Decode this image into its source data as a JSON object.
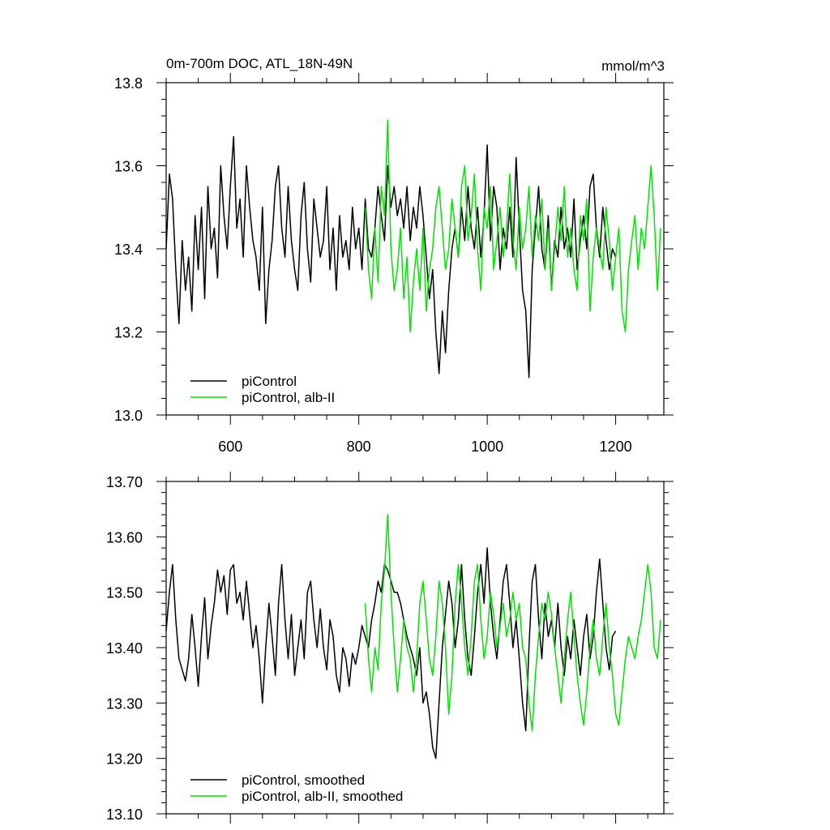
{
  "chart_data": [
    {
      "type": "line",
      "title": "0m-700m DOC, ATL_18N-49N",
      "units": "mmol/m^3",
      "xlim": [
        500,
        1275
      ],
      "ylim": [
        13.0,
        13.8
      ],
      "xticks": [
        600,
        800,
        1000,
        1200
      ],
      "xtick_labels": [
        "600",
        "800",
        "1000",
        "1200"
      ],
      "yticks": [
        13.0,
        13.2,
        13.4,
        13.6,
        13.8
      ],
      "ytick_labels": [
        "13.0",
        "13.2",
        "13.4",
        "13.6",
        "13.8"
      ],
      "legend_position": "bottom-left",
      "series": [
        {
          "name": "piControl",
          "color": "#000000",
          "x": [
            500,
            505,
            510,
            515,
            520,
            525,
            530,
            535,
            540,
            545,
            550,
            555,
            560,
            565,
            570,
            575,
            580,
            585,
            590,
            595,
            600,
            605,
            610,
            615,
            620,
            625,
            630,
            635,
            640,
            645,
            650,
            655,
            660,
            665,
            670,
            675,
            680,
            685,
            690,
            695,
            700,
            705,
            710,
            715,
            720,
            725,
            730,
            735,
            740,
            745,
            750,
            755,
            760,
            765,
            770,
            775,
            780,
            785,
            790,
            795,
            800,
            805,
            810,
            815,
            820,
            825,
            830,
            835,
            840,
            845,
            850,
            855,
            860,
            865,
            870,
            875,
            880,
            885,
            890,
            895,
            900,
            905,
            910,
            915,
            920,
            925,
            930,
            935,
            940,
            945,
            950,
            955,
            960,
            965,
            970,
            975,
            980,
            985,
            990,
            995,
            1000,
            1005,
            1010,
            1015,
            1020,
            1025,
            1030,
            1035,
            1040,
            1045,
            1050,
            1055,
            1060,
            1065,
            1070,
            1075,
            1080,
            1085,
            1090,
            1095,
            1100,
            1105,
            1110,
            1115,
            1120,
            1125,
            1130,
            1135,
            1140,
            1145,
            1150,
            1155,
            1160,
            1165,
            1170,
            1175,
            1180,
            1185,
            1190,
            1195,
            1200
          ],
          "y": [
            13.4,
            13.58,
            13.52,
            13.35,
            13.22,
            13.42,
            13.3,
            13.38,
            13.25,
            13.48,
            13.35,
            13.5,
            13.28,
            13.55,
            13.4,
            13.45,
            13.33,
            13.6,
            13.48,
            13.4,
            13.55,
            13.67,
            13.45,
            13.52,
            13.38,
            13.6,
            13.5,
            13.42,
            13.38,
            13.3,
            13.5,
            13.22,
            13.35,
            13.42,
            13.55,
            13.6,
            13.45,
            13.38,
            13.55,
            13.42,
            13.35,
            13.3,
            13.48,
            13.56,
            13.4,
            13.32,
            13.52,
            13.45,
            13.38,
            13.42,
            13.55,
            13.35,
            13.45,
            13.3,
            13.48,
            13.38,
            13.42,
            13.35,
            13.5,
            13.4,
            13.45,
            13.35,
            13.52,
            13.4,
            13.38,
            13.45,
            13.55,
            13.48,
            13.42,
            13.6,
            13.5,
            13.55,
            13.48,
            13.52,
            13.45,
            13.55,
            13.42,
            13.5,
            13.45,
            13.55,
            13.48,
            13.38,
            13.28,
            13.35,
            13.2,
            13.1,
            13.25,
            13.15,
            13.3,
            13.4,
            13.45,
            13.38,
            13.5,
            13.42,
            13.55,
            13.45,
            13.4,
            13.5,
            13.38,
            13.48,
            13.65,
            13.42,
            13.55,
            13.5,
            13.35,
            13.45,
            13.4,
            13.5,
            13.38,
            13.62,
            13.45,
            13.3,
            13.25,
            13.09,
            13.35,
            13.45,
            13.55,
            13.4,
            13.35,
            13.48,
            13.3,
            13.42,
            13.38,
            13.5,
            13.4,
            13.45,
            13.38,
            13.52,
            13.35,
            13.42,
            13.48,
            13.4,
            13.55,
            13.58,
            13.45,
            13.38,
            13.5,
            13.42,
            13.35,
            13.4,
            13.38
          ]
        },
        {
          "name": "piControl, alb-II",
          "color": "#00e400",
          "x": [
            810,
            815,
            820,
            825,
            830,
            835,
            840,
            845,
            850,
            855,
            860,
            865,
            870,
            875,
            880,
            885,
            890,
            895,
            900,
            905,
            910,
            915,
            920,
            925,
            930,
            935,
            940,
            945,
            950,
            955,
            960,
            965,
            970,
            975,
            980,
            985,
            990,
            995,
            1000,
            1005,
            1010,
            1015,
            1020,
            1025,
            1030,
            1035,
            1040,
            1045,
            1050,
            1055,
            1060,
            1065,
            1070,
            1075,
            1080,
            1085,
            1090,
            1095,
            1100,
            1105,
            1110,
            1115,
            1120,
            1125,
            1130,
            1135,
            1140,
            1145,
            1150,
            1155,
            1160,
            1165,
            1170,
            1175,
            1180,
            1185,
            1190,
            1195,
            1200,
            1205,
            1210,
            1215,
            1220,
            1225,
            1230,
            1235,
            1240,
            1245,
            1250,
            1255,
            1260,
            1265,
            1270
          ],
          "y": [
            13.5,
            13.35,
            13.28,
            13.45,
            13.32,
            13.55,
            13.48,
            13.71,
            13.4,
            13.3,
            13.35,
            13.45,
            13.28,
            13.38,
            13.2,
            13.32,
            13.4,
            13.3,
            13.45,
            13.25,
            13.35,
            13.4,
            13.5,
            13.55,
            13.45,
            13.35,
            13.4,
            13.52,
            13.45,
            13.38,
            13.55,
            13.6,
            13.42,
            13.48,
            13.58,
            13.4,
            13.3,
            13.5,
            13.45,
            13.55,
            13.35,
            13.42,
            13.5,
            13.38,
            13.45,
            13.58,
            13.42,
            13.35,
            13.5,
            13.4,
            13.45,
            13.55,
            13.38,
            13.48,
            13.42,
            13.52,
            13.35,
            13.45,
            13.3,
            13.4,
            13.5,
            13.42,
            13.55,
            13.38,
            13.45,
            13.35,
            13.3,
            13.48,
            13.42,
            13.52,
            13.25,
            13.38,
            13.45,
            13.4,
            13.35,
            13.5,
            13.42,
            13.3,
            13.38,
            13.45,
            13.25,
            13.2,
            13.35,
            13.42,
            13.48,
            13.35,
            13.45,
            13.4,
            13.5,
            13.6,
            13.48,
            13.3,
            13.45
          ]
        }
      ]
    },
    {
      "type": "line",
      "title": "",
      "xlim": [
        500,
        1275
      ],
      "ylim": [
        13.1,
        13.7
      ],
      "xticks": [
        600,
        800,
        1000,
        1200
      ],
      "yticks": [
        13.1,
        13.2,
        13.3,
        13.4,
        13.5,
        13.6,
        13.7
      ],
      "ytick_labels": [
        "13.10",
        "13.20",
        "13.30",
        "13.40",
        "13.50",
        "13.60",
        "13.70"
      ],
      "legend_position": "bottom-left",
      "series": [
        {
          "name": "piControl, smoothed",
          "color": "#000000",
          "x": [
            500,
            505,
            510,
            515,
            520,
            525,
            530,
            535,
            540,
            545,
            550,
            555,
            560,
            565,
            570,
            575,
            580,
            585,
            590,
            595,
            600,
            605,
            610,
            615,
            620,
            625,
            630,
            635,
            640,
            645,
            650,
            655,
            660,
            665,
            670,
            675,
            680,
            685,
            690,
            695,
            700,
            705,
            710,
            715,
            720,
            725,
            730,
            735,
            740,
            745,
            750,
            755,
            760,
            765,
            770,
            775,
            780,
            785,
            790,
            795,
            800,
            805,
            810,
            815,
            820,
            825,
            830,
            835,
            840,
            845,
            850,
            855,
            860,
            865,
            870,
            875,
            880,
            885,
            890,
            895,
            900,
            905,
            910,
            915,
            920,
            925,
            930,
            935,
            940,
            945,
            950,
            955,
            960,
            965,
            970,
            975,
            980,
            985,
            990,
            995,
            1000,
            1005,
            1010,
            1015,
            1020,
            1025,
            1030,
            1035,
            1040,
            1045,
            1050,
            1055,
            1060,
            1065,
            1070,
            1075,
            1080,
            1085,
            1090,
            1095,
            1100,
            1105,
            1110,
            1115,
            1120,
            1125,
            1130,
            1135,
            1140,
            1145,
            1150,
            1155,
            1160,
            1165,
            1170,
            1175,
            1180,
            1185,
            1190,
            1195,
            1200
          ],
          "y": [
            13.43,
            13.5,
            13.55,
            13.45,
            13.38,
            13.36,
            13.34,
            13.38,
            13.46,
            13.4,
            13.33,
            13.42,
            13.49,
            13.38,
            13.44,
            13.48,
            13.54,
            13.5,
            13.53,
            13.46,
            13.54,
            13.55,
            13.48,
            13.5,
            13.45,
            13.52,
            13.46,
            13.4,
            13.44,
            13.38,
            13.3,
            13.4,
            13.48,
            13.42,
            13.35,
            13.48,
            13.55,
            13.45,
            13.38,
            13.46,
            13.35,
            13.4,
            13.45,
            13.38,
            13.5,
            13.52,
            13.45,
            13.4,
            13.47,
            13.4,
            13.36,
            13.45,
            13.42,
            13.35,
            13.32,
            13.4,
            13.38,
            13.33,
            13.39,
            13.37,
            13.4,
            13.44,
            13.42,
            13.4,
            13.45,
            13.48,
            13.52,
            13.5,
            13.55,
            13.54,
            13.52,
            13.5,
            13.5,
            13.48,
            13.45,
            13.42,
            13.4,
            13.38,
            13.35,
            13.4,
            13.3,
            13.32,
            13.28,
            13.22,
            13.2,
            13.3,
            13.4,
            13.46,
            13.52,
            13.48,
            13.4,
            13.45,
            13.55,
            13.45,
            13.38,
            13.35,
            13.42,
            13.5,
            13.55,
            13.48,
            13.58,
            13.48,
            13.42,
            13.38,
            13.45,
            13.52,
            13.55,
            13.48,
            13.4,
            13.45,
            13.38,
            13.3,
            13.25,
            13.4,
            13.52,
            13.55,
            13.45,
            13.38,
            13.48,
            13.42,
            13.45,
            13.4,
            13.48,
            13.4,
            13.35,
            13.42,
            13.38,
            13.45,
            13.4,
            13.35,
            13.42,
            13.46,
            13.38,
            13.42,
            13.5,
            13.56,
            13.48,
            13.4,
            13.36,
            13.42,
            13.43
          ]
        },
        {
          "name": "piControl, alb-II, smoothed",
          "color": "#00e400",
          "x": [
            810,
            815,
            820,
            825,
            830,
            835,
            840,
            845,
            850,
            855,
            860,
            865,
            870,
            875,
            880,
            885,
            890,
            895,
            900,
            905,
            910,
            915,
            920,
            925,
            930,
            935,
            940,
            945,
            950,
            955,
            960,
            965,
            970,
            975,
            980,
            985,
            990,
            995,
            1000,
            1005,
            1010,
            1015,
            1020,
            1025,
            1030,
            1035,
            1040,
            1045,
            1050,
            1055,
            1060,
            1065,
            1070,
            1075,
            1080,
            1085,
            1090,
            1095,
            1100,
            1105,
            1110,
            1115,
            1120,
            1125,
            1130,
            1135,
            1140,
            1145,
            1150,
            1155,
            1160,
            1165,
            1170,
            1175,
            1180,
            1185,
            1190,
            1195,
            1200,
            1205,
            1210,
            1215,
            1220,
            1225,
            1230,
            1235,
            1240,
            1245,
            1250,
            1255,
            1260,
            1265,
            1270
          ],
          "y": [
            13.48,
            13.38,
            13.32,
            13.4,
            13.36,
            13.48,
            13.54,
            13.64,
            13.5,
            13.4,
            13.32,
            13.38,
            13.45,
            13.4,
            13.38,
            13.32,
            13.38,
            13.48,
            13.52,
            13.45,
            13.38,
            13.35,
            13.42,
            13.52,
            13.48,
            13.4,
            13.28,
            13.35,
            13.48,
            13.55,
            13.48,
            13.4,
            13.35,
            13.42,
            13.52,
            13.55,
            13.45,
            13.38,
            13.42,
            13.5,
            13.46,
            13.4,
            13.44,
            13.48,
            13.42,
            13.45,
            13.5,
            13.45,
            13.48,
            13.4,
            13.38,
            13.3,
            13.25,
            13.35,
            13.42,
            13.48,
            13.45,
            13.5,
            13.46,
            13.4,
            13.35,
            13.3,
            13.38,
            13.45,
            13.5,
            13.42,
            13.35,
            13.3,
            13.26,
            13.32,
            13.4,
            13.45,
            13.38,
            13.35,
            13.42,
            13.48,
            13.4,
            13.35,
            13.28,
            13.26,
            13.32,
            13.38,
            13.42,
            13.4,
            13.38,
            13.42,
            13.45,
            13.5,
            13.55,
            13.5,
            13.4,
            13.38,
            13.45
          ]
        }
      ]
    }
  ]
}
